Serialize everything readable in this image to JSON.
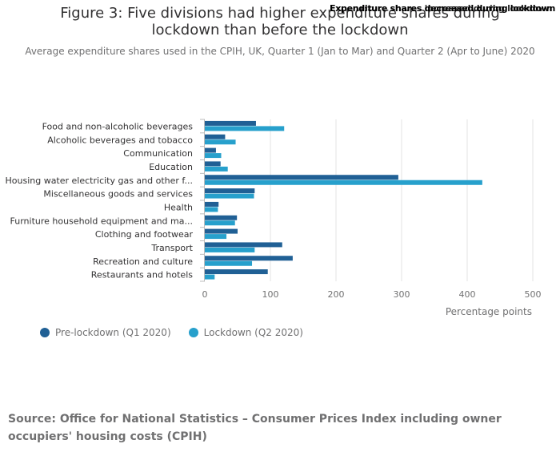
{
  "title": "Figure 3: Five divisions had higher expenditure shares during lockdown than before the lockdown",
  "overlay_lines": [
    "Expenditure shares decreased during lockdown",
    "Expenditure shares increased during lockdown"
  ],
  "subtitle": "Average expenditure shares used in the CPIH, UK, Quarter 1 (Jan to Mar) and Quarter 2 (Apr to June) 2020",
  "source": "Source: Office for National Statistics – Consumer Prices Index including owner occupiers' housing costs (CPIH)",
  "chart_data": {
    "type": "bar",
    "orientation": "horizontal",
    "categories": [
      "Food and non-alcoholic beverages",
      "Alcoholic beverages and tobacco",
      "Communication",
      "Education",
      "Housing water electricity gas and other f...",
      "Miscellaneous goods and services",
      "Health",
      "Furniture household equipment and ma...",
      "Clothing and footwear",
      "Transport",
      "Recreation and culture",
      "Restaurants and hotels"
    ],
    "series": [
      {
        "name": "Pre-lockdown (Q1 2020)",
        "color": "#206095",
        "values": [
          78,
          31,
          17,
          24,
          295,
          76,
          21,
          49,
          50,
          118,
          134,
          96
        ]
      },
      {
        "name": "Lockdown (Q2 2020)",
        "color": "#27a0cc",
        "values": [
          121,
          47,
          25,
          35,
          423,
          75,
          20,
          46,
          33,
          76,
          72,
          15
        ]
      }
    ],
    "xlim": [
      0,
      500
    ],
    "xticks": [
      "0",
      "100",
      "200",
      "300",
      "400",
      "500"
    ],
    "xlabel": "Percentage points",
    "ylabel": "",
    "grid": true,
    "legend": "bottom-left"
  }
}
